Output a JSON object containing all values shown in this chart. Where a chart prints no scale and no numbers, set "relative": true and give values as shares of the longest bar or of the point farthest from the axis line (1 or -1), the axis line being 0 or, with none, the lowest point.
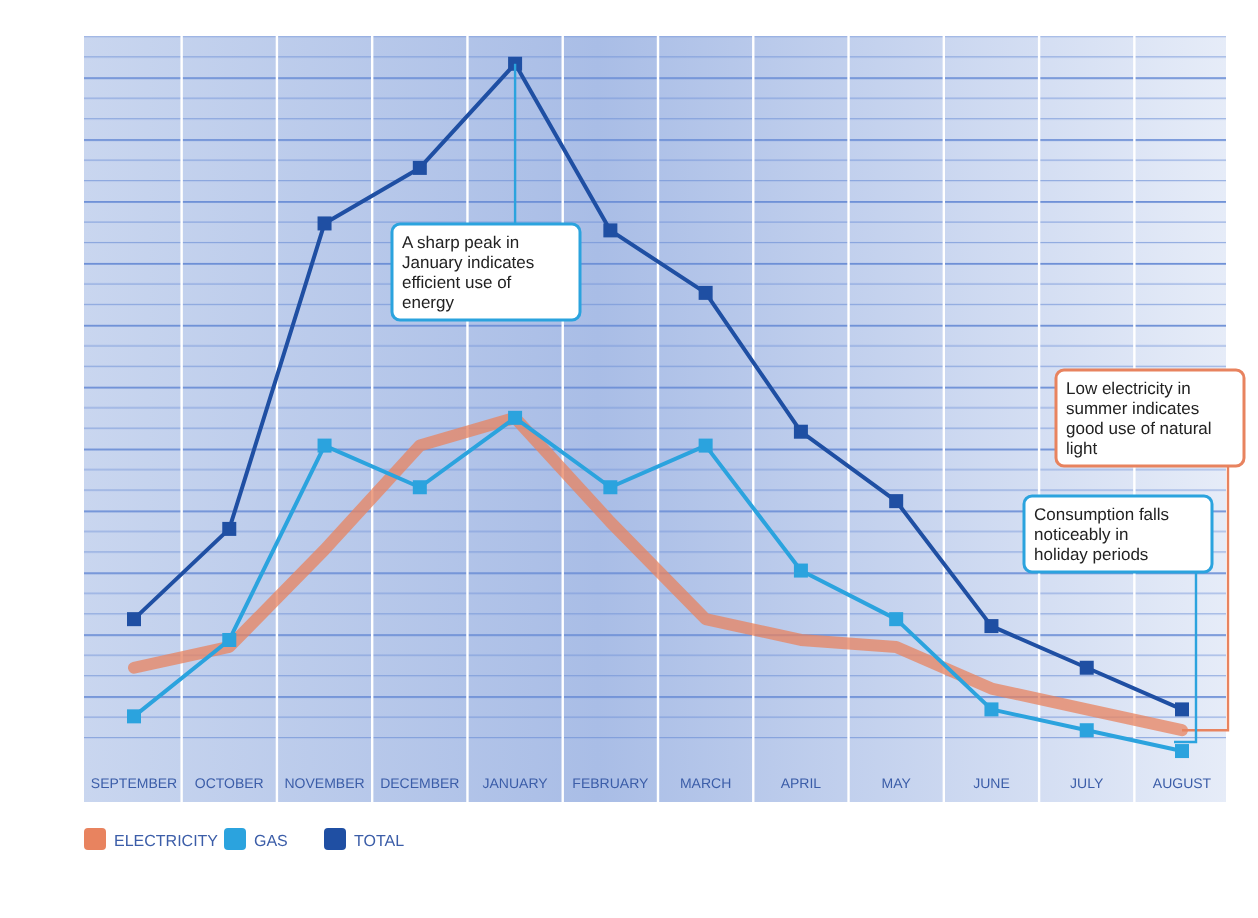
{
  "chart_data": {
    "type": "line",
    "relative": true,
    "grid": true,
    "legend": "bottom left",
    "categories": [
      "SEPTEMBER",
      "OCTOBER",
      "NOVEMBER",
      "DECEMBER",
      "JANUARY",
      "FEBRUARY",
      "MARCH",
      "APRIL",
      "MAY",
      "JUNE",
      "JULY",
      "AUGUST"
    ],
    "series": [
      {
        "name": "ELECTRICITY",
        "color": "#e8835f",
        "marker": "none",
        "values": [
          0.13,
          0.16,
          0.3,
          0.45,
          0.49,
          0.34,
          0.2,
          0.17,
          0.16,
          0.1,
          0.07,
          0.04
        ]
      },
      {
        "name": "GAS",
        "color": "#2ba3de",
        "marker": "square",
        "values": [
          0.06,
          0.17,
          0.45,
          0.39,
          0.49,
          0.39,
          0.45,
          0.27,
          0.2,
          0.07,
          0.04,
          0.01
        ]
      },
      {
        "name": "TOTAL",
        "color": "#1f4fa3",
        "marker": "square",
        "values": [
          0.2,
          0.33,
          0.77,
          0.85,
          1,
          0.76,
          0.67,
          0.47,
          0.37,
          0.19,
          0.13,
          0.07
        ]
      }
    ],
    "annotations": [
      {
        "text": "A sharp peak in January indicates efficient use of energy",
        "x": "JANUARY",
        "y": 1
      },
      {
        "text": "Low electricity in summer indicates good use of natural light",
        "x": "AUGUST",
        "y": 0.04
      },
      "Consumption falls noticeably in holiday periods"
    ]
  }
}
